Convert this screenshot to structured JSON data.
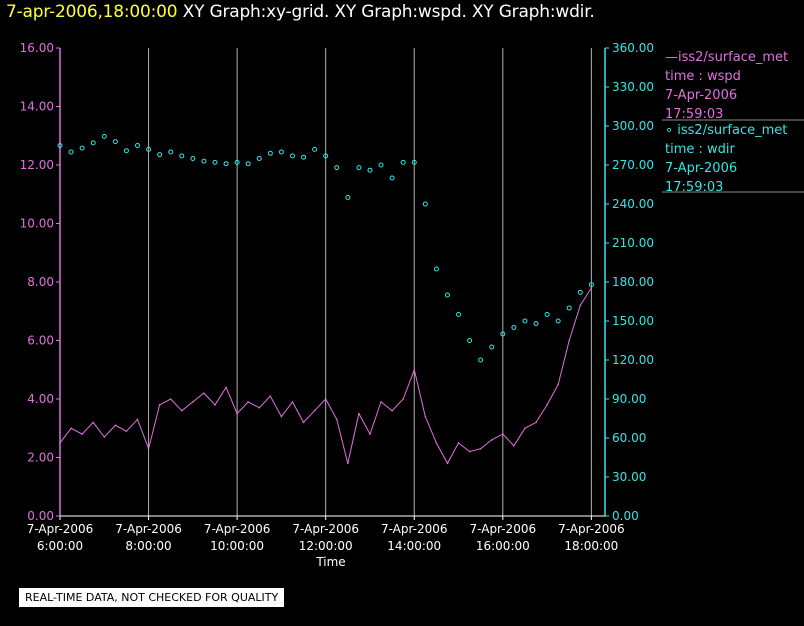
{
  "header": {
    "timestamp": "7-apr-2006,18:00:00",
    "graphs": "XY Graph:xy-grid.  XY Graph:wspd.  XY Graph:wdir."
  },
  "legend": {
    "wspd": {
      "line1": "—iss2/surface_met",
      "line2": "time : wspd",
      "line3": "7-Apr-2006",
      "line4": "17:59:03"
    },
    "wdir": {
      "line1": "∘ iss2/surface_met",
      "line2": "time : wdir",
      "line3": "7-Apr-2006",
      "line4": "17:59:03"
    }
  },
  "disclaimer": "REAL-TIME DATA, NOT CHECKED FOR QUALITY",
  "colors": {
    "wspd": "#e070e0",
    "wdir": "#33e6e6",
    "grid": "#b0b0b0",
    "background": "#000000",
    "timestamp": "#ffff33"
  },
  "chart_data": {
    "type": "line+scatter",
    "xlabel": "Time",
    "x_ticks": [
      {
        "date": "7-Apr-2006",
        "time": "6:00:00",
        "hour": 6
      },
      {
        "date": "7-Apr-2006",
        "time": "8:00:00",
        "hour": 8
      },
      {
        "date": "7-Apr-2006",
        "time": "10:00:00",
        "hour": 10
      },
      {
        "date": "7-Apr-2006",
        "time": "12:00:00",
        "hour": 12
      },
      {
        "date": "7-Apr-2006",
        "time": "14:00:00",
        "hour": 14
      },
      {
        "date": "7-Apr-2006",
        "time": "16:00:00",
        "hour": 16
      },
      {
        "date": "7-Apr-2006",
        "time": "18:00:00",
        "hour": 18
      }
    ],
    "xlim_hours": [
      6,
      18
    ],
    "y_left": {
      "ylim": [
        0,
        16
      ],
      "ticks": [
        "0.00",
        "2.00",
        "4.00",
        "6.00",
        "8.00",
        "10.00",
        "12.00",
        "14.00",
        "16.00"
      ]
    },
    "y_right": {
      "ylim": [
        0,
        360
      ],
      "ticks": [
        "0.00",
        "30.00",
        "60.00",
        "90.00",
        "120.00",
        "150.00",
        "180.00",
        "210.00",
        "240.00",
        "270.00",
        "300.00",
        "330.00",
        "360.00"
      ]
    },
    "grid": "vertical",
    "series": [
      {
        "name": "iss2/surface_met time : wspd",
        "style": "line",
        "axis": "left",
        "x_hours": [
          6.0,
          6.25,
          6.5,
          6.75,
          7.0,
          7.25,
          7.5,
          7.75,
          8.0,
          8.25,
          8.5,
          8.75,
          9.0,
          9.25,
          9.5,
          9.75,
          10.0,
          10.25,
          10.5,
          10.75,
          11.0,
          11.25,
          11.5,
          11.75,
          12.0,
          12.25,
          12.5,
          12.75,
          13.0,
          13.25,
          13.5,
          13.75,
          14.0,
          14.25,
          14.5,
          14.75,
          15.0,
          15.25,
          15.5,
          15.75,
          16.0,
          16.25,
          16.5,
          16.75,
          17.0,
          17.25,
          17.5,
          17.75,
          18.0
        ],
        "values": [
          2.5,
          3.0,
          2.8,
          3.2,
          2.7,
          3.1,
          2.9,
          3.3,
          2.3,
          3.8,
          4.0,
          3.6,
          3.9,
          4.2,
          3.8,
          4.4,
          3.5,
          3.9,
          3.7,
          4.1,
          3.4,
          3.9,
          3.2,
          3.6,
          4.0,
          3.3,
          1.8,
          3.5,
          2.8,
          3.9,
          3.6,
          4.0,
          5.0,
          3.4,
          2.5,
          1.8,
          2.5,
          2.2,
          2.3,
          2.6,
          2.8,
          2.4,
          3.0,
          3.2,
          3.8,
          4.5,
          6.0,
          7.2,
          7.8
        ]
      },
      {
        "name": "iss2/surface_met time : wdir",
        "style": "scatter",
        "axis": "right",
        "x_hours": [
          6.0,
          6.25,
          6.5,
          6.75,
          7.0,
          7.25,
          7.5,
          7.75,
          8.0,
          8.25,
          8.5,
          8.75,
          9.0,
          9.25,
          9.5,
          9.75,
          10.0,
          10.25,
          10.5,
          10.75,
          11.0,
          11.25,
          11.5,
          11.75,
          12.0,
          12.25,
          12.5,
          12.75,
          13.0,
          13.25,
          13.5,
          13.75,
          14.0,
          14.25,
          14.5,
          14.75,
          15.0,
          15.25,
          15.5,
          15.75,
          16.0,
          16.25,
          16.5,
          16.75,
          17.0,
          17.25,
          17.5,
          17.75,
          18.0
        ],
        "values": [
          285,
          280,
          283,
          287,
          292,
          288,
          281,
          285,
          282,
          278,
          280,
          277,
          275,
          273,
          272,
          271,
          272,
          271,
          275,
          279,
          280,
          277,
          276,
          282,
          277,
          268,
          245,
          268,
          266,
          270,
          260,
          272,
          272,
          240,
          190,
          170,
          155,
          135,
          120,
          130,
          140,
          145,
          150,
          148,
          155,
          150,
          160,
          172,
          178
        ]
      }
    ]
  }
}
